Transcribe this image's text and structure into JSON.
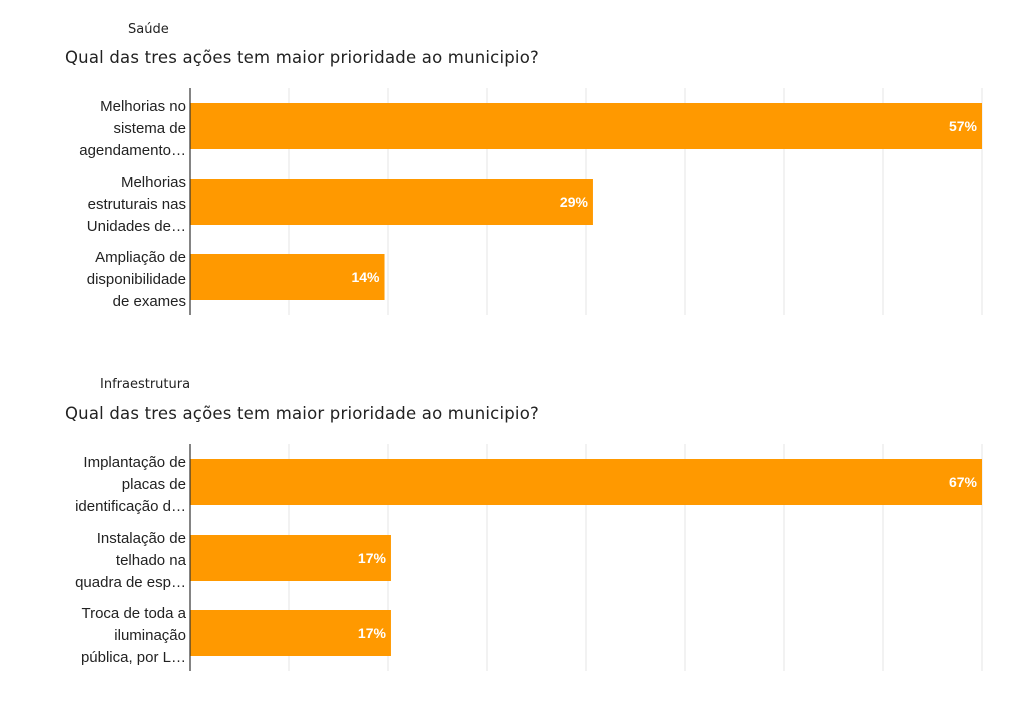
{
  "chart_data": [
    {
      "type": "bar",
      "orientation": "horizontal",
      "section": "Saúde",
      "title": "Qual das tres ações tem maior prioridade ao municipio?",
      "categories": [
        [
          "Melhorias no",
          "sistema de",
          "agendamento…"
        ],
        [
          "Melhorias",
          "estruturais nas",
          "Unidades de…"
        ],
        [
          "Ampliação de",
          "disponibilidade",
          "de exames"
        ]
      ],
      "values": [
        57,
        29,
        14
      ],
      "value_labels": [
        "57%",
        "29%",
        "14%"
      ],
      "xlim": [
        0,
        57
      ],
      "grid": true,
      "bar_color": "#ff9900"
    },
    {
      "type": "bar",
      "orientation": "horizontal",
      "section": "Infraestrutura",
      "title": "Qual das tres ações tem maior prioridade ao municipio?",
      "categories": [
        [
          "Implantação de",
          "placas de",
          "identificação d…"
        ],
        [
          "Instalação de",
          "telhado na",
          "quadra de esp…"
        ],
        [
          "Troca de toda a",
          "iluminação",
          "pública, por L…"
        ]
      ],
      "values": [
        67,
        17,
        17
      ],
      "value_labels": [
        "67%",
        "17%",
        "17%"
      ],
      "xlim": [
        0,
        67
      ],
      "grid": true,
      "bar_color": "#ff9900"
    }
  ]
}
